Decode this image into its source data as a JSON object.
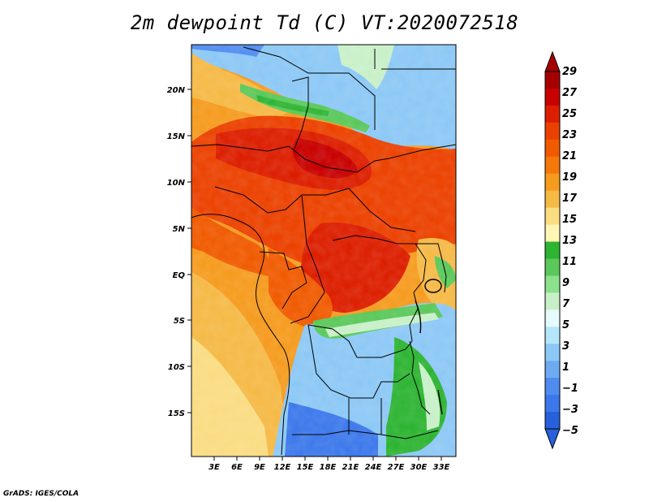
{
  "title": "2m dewpoint Td (C) VT:2020072518",
  "credit": "GrADS: IGES/COLA",
  "map": {
    "lon_labels": [
      "3E",
      "6E",
      "9E",
      "12E",
      "15E",
      "18E",
      "21E",
      "24E",
      "27E",
      "30E",
      "33E"
    ],
    "lat_labels": [
      "20N",
      "15N",
      "10N",
      "5N",
      "EQ",
      "5S",
      "10S",
      "15S"
    ]
  },
  "colorbar": {
    "labels": [
      "29",
      "27",
      "25",
      "23",
      "21",
      "19",
      "17",
      "15",
      "13",
      "11",
      "9",
      "7",
      "5",
      "3",
      "1",
      "−1",
      "−3",
      "−5"
    ],
    "colors": [
      "#a50000",
      "#c80000",
      "#dc1e00",
      "#eb4100",
      "#f05a00",
      "#f5780a",
      "#f59b1e",
      "#f5b946",
      "#fadc82",
      "#fff5b4",
      "#2db432",
      "#5ac85a",
      "#8ce18c",
      "#c8f0c8",
      "#e6fafa",
      "#b4e6fa",
      "#8cc8f5",
      "#6eaaf0",
      "#508cf0",
      "#3c78eb",
      "#2860dc"
    ]
  }
}
